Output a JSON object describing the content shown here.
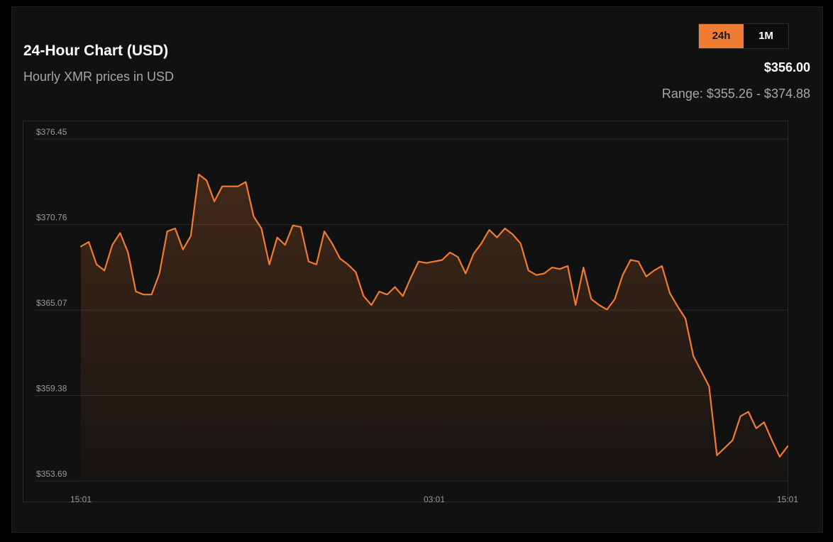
{
  "header": {
    "title": "24-Hour Chart (USD)",
    "subtitle": "Hourly XMR prices in USD"
  },
  "toggle": {
    "options": [
      {
        "label": "24h",
        "active": true
      },
      {
        "label": "1M",
        "active": false
      }
    ]
  },
  "summary": {
    "price": "$356.00",
    "range": "Range: $355.26 - $374.88"
  },
  "colors": {
    "accent": "#f07b33",
    "background": "#111111",
    "grid": "#2a2a2a",
    "muted_text": "#a6a6a6"
  },
  "chart_data": {
    "type": "area",
    "title": "24-Hour Chart (USD)",
    "subtitle": "Hourly XMR prices in USD",
    "xlabel": "",
    "ylabel": "",
    "y_ticks": [
      "$353.69",
      "$359.38",
      "$365.07",
      "$370.76",
      "$376.45"
    ],
    "y_tick_values": [
      353.69,
      359.38,
      365.07,
      370.76,
      376.45
    ],
    "ylim": [
      353.69,
      376.45
    ],
    "x_ticks": [
      "15:01",
      "03:01",
      "15:01"
    ],
    "x_tick_positions": [
      0,
      0.5,
      1
    ],
    "grid": true,
    "legend": "none",
    "series": [
      {
        "values": [
          369.3,
          369.6,
          368.1,
          367.7,
          369.4,
          370.2,
          368.9,
          366.3,
          366.1,
          366.1,
          367.5,
          370.3,
          370.5,
          369.1,
          370.0,
          374.1,
          373.7,
          372.3,
          373.3,
          373.3,
          373.3,
          373.6,
          371.3,
          370.5,
          368.1,
          369.9,
          369.4,
          370.7,
          370.6,
          368.3,
          368.1,
          370.3,
          369.5,
          368.5,
          368.1,
          367.6,
          366.0,
          365.4,
          366.3,
          366.1,
          366.6,
          366.0,
          367.2,
          368.3,
          368.2,
          368.3,
          368.4,
          368.9,
          368.6,
          367.5,
          368.8,
          369.5,
          370.4,
          369.9,
          370.5,
          370.1,
          369.5,
          367.7,
          367.4,
          367.5,
          367.9,
          367.8,
          368.0,
          365.4,
          367.9,
          365.8,
          365.4,
          365.1,
          365.8,
          367.4,
          368.4,
          368.3,
          367.3,
          367.7,
          368.0,
          366.2,
          365.3,
          364.5,
          362.0,
          361.0,
          360.0,
          355.4,
          355.9,
          356.4,
          358.0,
          358.3,
          357.2,
          357.6,
          356.4,
          355.3,
          356.0
        ]
      }
    ]
  }
}
